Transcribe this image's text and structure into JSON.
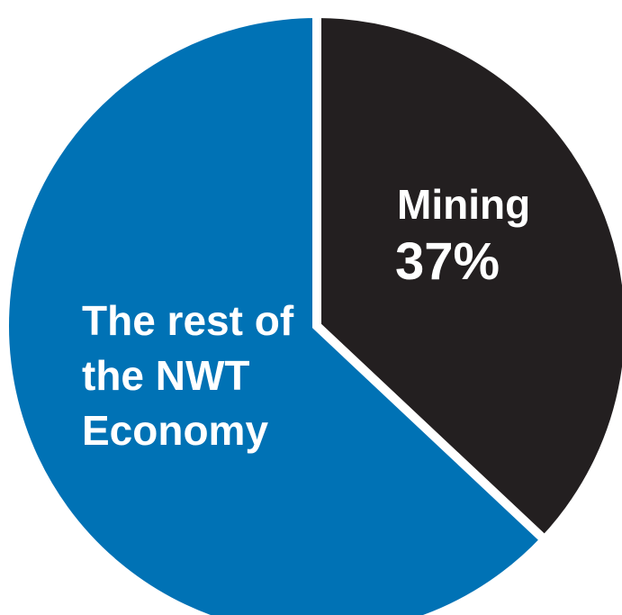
{
  "chart_data": {
    "type": "pie",
    "slices": [
      {
        "label": "Mining",
        "value": 37,
        "value_label": "37%",
        "color": "#231f20"
      },
      {
        "label_lines": [
          "The rest of",
          "the NWT",
          "Economy"
        ],
        "value": 63,
        "color": "#0072b5"
      }
    ]
  }
}
